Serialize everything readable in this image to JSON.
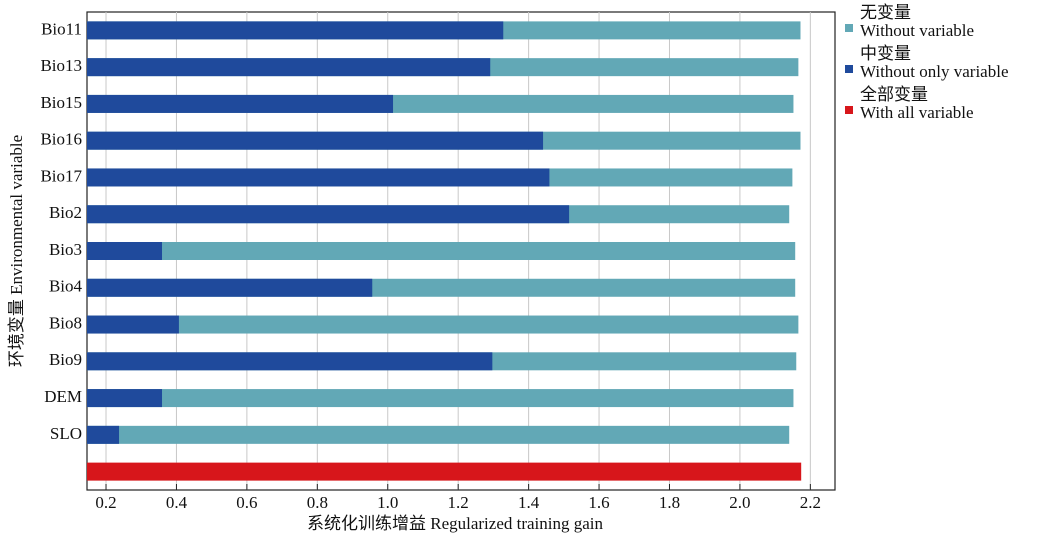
{
  "chart_data": {
    "type": "bar",
    "orientation": "horizontal",
    "x_label": "系统化训练增益 Regularized training gain",
    "y_label": "环境变量 Environmental variable",
    "categories": [
      "Bio11",
      "Bio13",
      "Bio15",
      "Bio16",
      "Bio17",
      "Bio2",
      "Bio3",
      "Bio4",
      "Bio8",
      "Bio9",
      "DEM",
      "SLO",
      null
    ],
    "series": [
      {
        "name": "Without variable",
        "name_zh": "无变量",
        "color": "#62a8b6",
        "values": [
          2.172,
          2.166,
          2.152,
          2.172,
          2.149,
          2.14,
          2.157,
          2.157,
          2.166,
          2.16,
          2.152,
          2.14,
          null
        ]
      },
      {
        "name": "Without only variable",
        "name_zh": "中变量",
        "color": "#1f4a9c",
        "values": [
          1.328,
          1.291,
          1.015,
          1.441,
          1.459,
          1.515,
          0.359,
          0.956,
          0.407,
          1.297,
          0.359,
          0.237,
          null
        ]
      },
      {
        "name": "With all variable",
        "name_zh": "全部变量",
        "color": "#d7161b",
        "values": [
          null,
          null,
          null,
          null,
          null,
          null,
          null,
          null,
          null,
          null,
          null,
          null,
          2.174
        ]
      }
    ],
    "xlim": [
      0.146,
      2.27
    ],
    "xticks": [
      0.2,
      0.4,
      0.6,
      0.8,
      {
        "value": 1,
        "label": "1.0"
      },
      1.2,
      1.4,
      1.6,
      1.8,
      {
        "value": 2,
        "label": "2.0"
      },
      2.2
    ],
    "grid": true
  }
}
